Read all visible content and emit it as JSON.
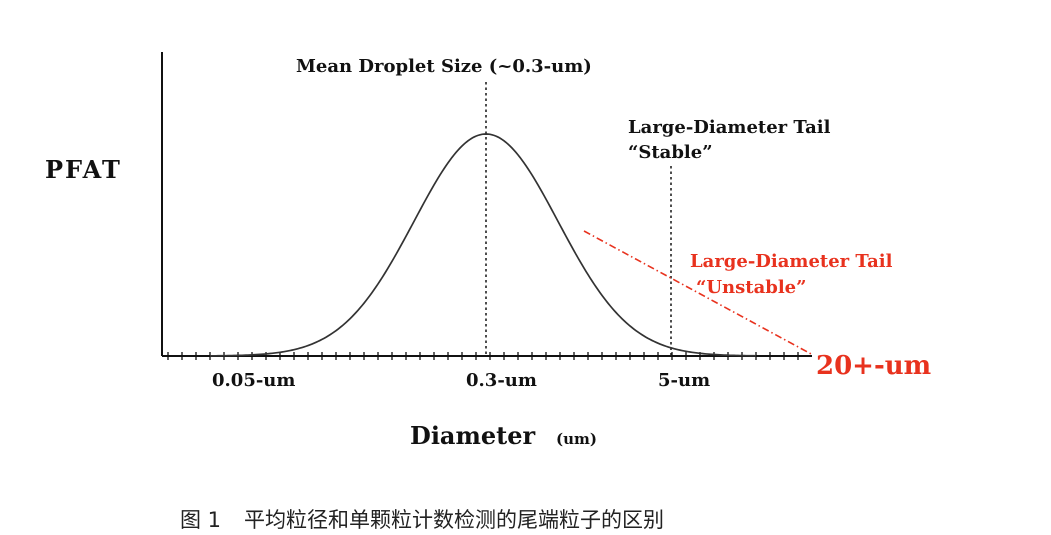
{
  "figure": {
    "ylabel": "PFAT",
    "xlabel_main": "Diameter",
    "xlabel_unit": "(um)",
    "mean_label": "Mean Droplet Size (~0.3-um)",
    "stable_label_line1": "Large-Diameter Tail",
    "stable_label_line2": "“Stable”",
    "unstable_label_line1": "Large-Diameter Tail",
    "unstable_label_line2": "“Unstable”",
    "ticks": {
      "t1": "0.05-um",
      "t2": "0.3-um",
      "t3": "5-um",
      "t4": "20+-um"
    },
    "colors": {
      "axis": "#111111",
      "curve": "#333333",
      "unstable": "#e8321e"
    }
  },
  "caption": {
    "prefix": "图 1",
    "text": "平均粒径和单颗粒计数检测的尾端粒子的区别"
  }
}
